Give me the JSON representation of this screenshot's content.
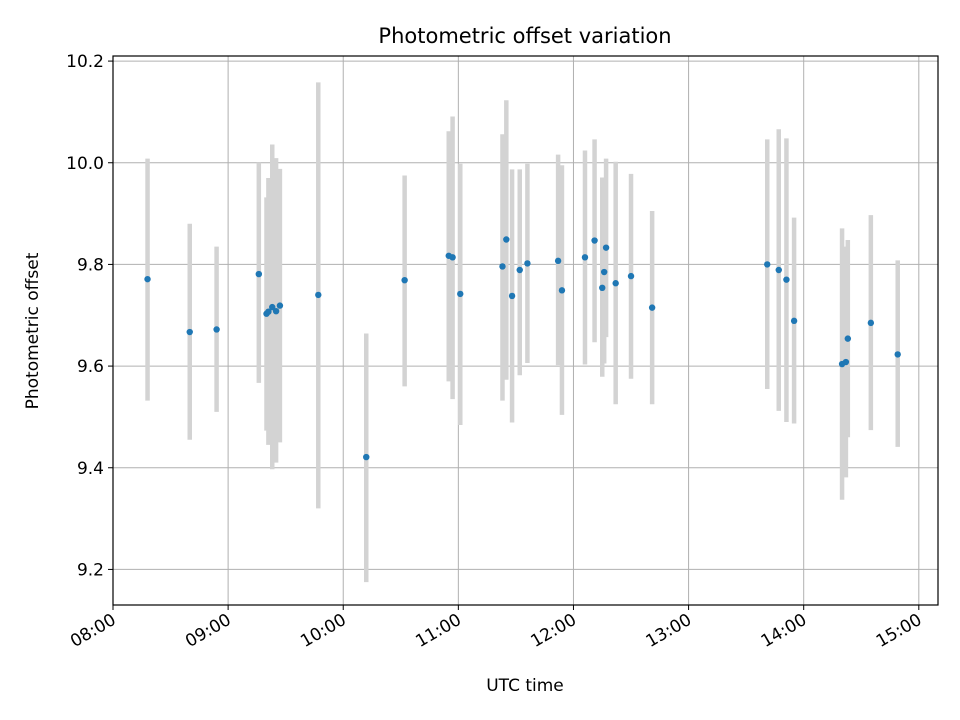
{
  "chart_data": {
    "type": "scatter",
    "title": "Photometric offset variation",
    "xlabel": "UTC time",
    "ylabel": "Photometric offset",
    "xlim": [
      "08:00",
      "15:10"
    ],
    "ylim": [
      9.13,
      10.21
    ],
    "x_ticks": [
      "08:00",
      "09:00",
      "10:00",
      "11:00",
      "12:00",
      "13:00",
      "14:00",
      "15:00"
    ],
    "y_ticks": [
      "9.2",
      "9.4",
      "9.6",
      "9.8",
      "10.0",
      "10.2"
    ],
    "grid": true,
    "colors": {
      "point": "#1f77b4",
      "errorbar": "#d3d3d3",
      "grid": "#b0b0b0"
    },
    "points": [
      {
        "x": "08:18",
        "y": 9.771,
        "yerr_low": 9.532,
        "yerr_high": 10.008
      },
      {
        "x": "08:40",
        "y": 9.667,
        "yerr_low": 9.455,
        "yerr_high": 9.88
      },
      {
        "x": "08:54",
        "y": 9.672,
        "yerr_low": 9.51,
        "yerr_high": 9.835
      },
      {
        "x": "09:16",
        "y": 9.781,
        "yerr_low": 9.567,
        "yerr_high": 10.0
      },
      {
        "x": "09:20",
        "y": 9.703,
        "yerr_low": 9.473,
        "yerr_high": 9.932
      },
      {
        "x": "09:21",
        "y": 9.707,
        "yerr_low": 9.445,
        "yerr_high": 9.97
      },
      {
        "x": "09:23",
        "y": 9.716,
        "yerr_low": 9.397,
        "yerr_high": 10.036
      },
      {
        "x": "09:25",
        "y": 9.708,
        "yerr_low": 9.41,
        "yerr_high": 10.009
      },
      {
        "x": "09:27",
        "y": 9.719,
        "yerr_low": 9.45,
        "yerr_high": 9.988
      },
      {
        "x": "09:47",
        "y": 9.74,
        "yerr_low": 9.32,
        "yerr_high": 10.158
      },
      {
        "x": "10:12",
        "y": 9.421,
        "yerr_low": 9.175,
        "yerr_high": 9.664
      },
      {
        "x": "10:32",
        "y": 9.769,
        "yerr_low": 9.56,
        "yerr_high": 9.975
      },
      {
        "x": "10:55",
        "y": 9.817,
        "yerr_low": 9.57,
        "yerr_high": 10.062
      },
      {
        "x": "10:57",
        "y": 9.814,
        "yerr_low": 9.535,
        "yerr_high": 10.091
      },
      {
        "x": "11:01",
        "y": 9.742,
        "yerr_low": 9.484,
        "yerr_high": 9.998
      },
      {
        "x": "11:23",
        "y": 9.796,
        "yerr_low": 9.532,
        "yerr_high": 10.056
      },
      {
        "x": "11:25",
        "y": 9.849,
        "yerr_low": 9.573,
        "yerr_high": 10.123
      },
      {
        "x": "11:28",
        "y": 9.738,
        "yerr_low": 9.489,
        "yerr_high": 9.987
      },
      {
        "x": "11:32",
        "y": 9.789,
        "yerr_low": 9.582,
        "yerr_high": 9.987
      },
      {
        "x": "11:36",
        "y": 9.802,
        "yerr_low": 9.606,
        "yerr_high": 9.998
      },
      {
        "x": "11:52",
        "y": 9.807,
        "yerr_low": 9.602,
        "yerr_high": 10.016
      },
      {
        "x": "11:54",
        "y": 9.749,
        "yerr_low": 9.504,
        "yerr_high": 9.995
      },
      {
        "x": "12:06",
        "y": 9.814,
        "yerr_low": 9.603,
        "yerr_high": 10.024
      },
      {
        "x": "12:11",
        "y": 9.847,
        "yerr_low": 9.647,
        "yerr_high": 10.046
      },
      {
        "x": "12:15",
        "y": 9.754,
        "yerr_low": 9.579,
        "yerr_high": 9.971
      },
      {
        "x": "12:16",
        "y": 9.785,
        "yerr_low": 9.605,
        "yerr_high": 9.952
      },
      {
        "x": "12:17",
        "y": 9.833,
        "yerr_low": 9.657,
        "yerr_high": 10.008
      },
      {
        "x": "12:22",
        "y": 9.763,
        "yerr_low": 9.525,
        "yerr_high": 10.002
      },
      {
        "x": "12:30",
        "y": 9.777,
        "yerr_low": 9.575,
        "yerr_high": 9.978
      },
      {
        "x": "12:41",
        "y": 9.715,
        "yerr_low": 9.525,
        "yerr_high": 9.905
      },
      {
        "x": "13:41",
        "y": 9.8,
        "yerr_low": 9.555,
        "yerr_high": 10.046
      },
      {
        "x": "13:47",
        "y": 9.789,
        "yerr_low": 9.512,
        "yerr_high": 10.066
      },
      {
        "x": "13:51",
        "y": 9.77,
        "yerr_low": 9.49,
        "yerr_high": 10.048
      },
      {
        "x": "13:55",
        "y": 9.689,
        "yerr_low": 9.487,
        "yerr_high": 9.892
      },
      {
        "x": "14:20",
        "y": 9.604,
        "yerr_low": 9.337,
        "yerr_high": 9.871
      },
      {
        "x": "14:22",
        "y": 9.608,
        "yerr_low": 9.381,
        "yerr_high": 9.835
      },
      {
        "x": "14:23",
        "y": 9.654,
        "yerr_low": 9.46,
        "yerr_high": 9.848
      },
      {
        "x": "14:35",
        "y": 9.685,
        "yerr_low": 9.474,
        "yerr_high": 9.897
      },
      {
        "x": "14:49",
        "y": 9.623,
        "yerr_low": 9.441,
        "yerr_high": 9.808
      }
    ]
  }
}
